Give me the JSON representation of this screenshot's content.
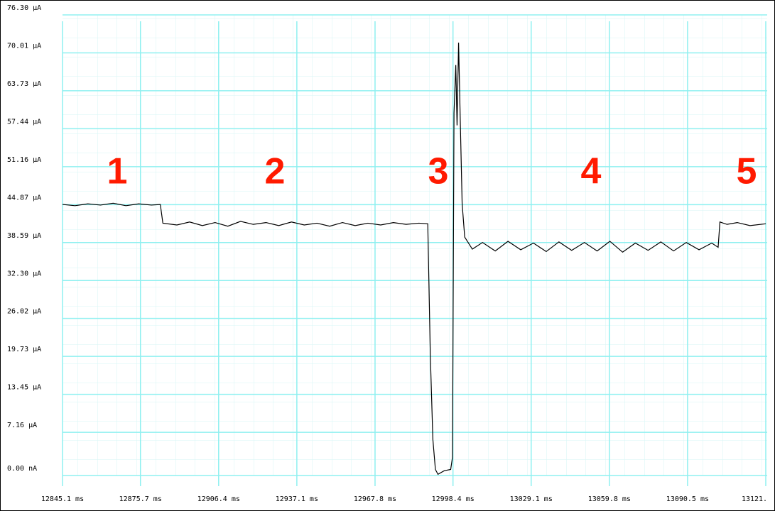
{
  "chart_data": {
    "type": "line",
    "x": [
      12845.1,
      12850,
      12855,
      12860,
      12865,
      12870,
      12875,
      12880,
      12883.5,
      12884.5,
      12890,
      12895,
      12900,
      12905,
      12910,
      12915,
      12920,
      12925,
      12930,
      12935,
      12940,
      12945,
      12950,
      12955,
      12960,
      12965,
      12970,
      12975,
      12980,
      12985,
      12988.5,
      12989.5,
      12990.5,
      12991.5,
      12992.5,
      12995,
      12997.5,
      12998.2,
      12998.8,
      12999.5,
      13000,
      13000.6,
      13001.2,
      13002,
      13003,
      13006,
      13010,
      13015,
      13020,
      13025,
      13030,
      13035,
      13040,
      13045,
      13050,
      13055,
      13060,
      13065,
      13070,
      13075,
      13080,
      13085,
      13090,
      13095,
      13100,
      13102.5,
      13103.2,
      13106,
      13110,
      13115,
      13121.2
    ],
    "series": [
      {
        "color": "#000000",
        "values": [
          44.9,
          44.7,
          45.0,
          44.8,
          45.1,
          44.7,
          45.0,
          44.8,
          44.9,
          41.8,
          41.5,
          42.0,
          41.4,
          41.9,
          41.3,
          42.1,
          41.6,
          41.9,
          41.4,
          42.0,
          41.5,
          41.8,
          41.3,
          41.9,
          41.4,
          41.8,
          41.5,
          41.9,
          41.6,
          41.8,
          41.7,
          20,
          6,
          1,
          0.2,
          0.8,
          1.0,
          3,
          60,
          68,
          58,
          71.7,
          60,
          45,
          39.5,
          37.5,
          38.6,
          37.2,
          38.8,
          37.4,
          38.5,
          37.1,
          38.7,
          37.3,
          38.6,
          37.2,
          38.8,
          37.0,
          38.5,
          37.3,
          38.7,
          37.2,
          38.6,
          37.4,
          38.5,
          37.8,
          42.0,
          41.6,
          41.9,
          41.4,
          41.7
        ]
      }
    ],
    "xlim": [
      12845.1,
      13121.2
    ],
    "ylim": [
      0,
      76.3
    ],
    "xticks": [
      {
        "value": 12845.1,
        "label": "12845.1 ms"
      },
      {
        "value": 12875.7,
        "label": "12875.7 ms"
      },
      {
        "value": 12906.4,
        "label": "12906.4 ms"
      },
      {
        "value": 12937.1,
        "label": "12937.1 ms"
      },
      {
        "value": 12967.8,
        "label": "12967.8 ms"
      },
      {
        "value": 12998.4,
        "label": "12998.4 ms"
      },
      {
        "value": 13029.1,
        "label": "13029.1 ms"
      },
      {
        "value": 13059.8,
        "label": "13059.8 ms"
      },
      {
        "value": 13090.5,
        "label": "13090.5 ms"
      },
      {
        "value": 13121.2,
        "label": "13121."
      }
    ],
    "yticks": [
      {
        "value": 0,
        "label": "0.00 nA"
      },
      {
        "value": 7.16,
        "label": "7.16 µA"
      },
      {
        "value": 13.45,
        "label": "13.45 µA"
      },
      {
        "value": 19.73,
        "label": "19.73 µA"
      },
      {
        "value": 26.02,
        "label": "26.02 µA"
      },
      {
        "value": 32.3,
        "label": "32.30 µA"
      },
      {
        "value": 38.59,
        "label": "38.59 µA"
      },
      {
        "value": 44.87,
        "label": "44.87 µA"
      },
      {
        "value": 51.16,
        "label": "51.16 µA"
      },
      {
        "value": 57.44,
        "label": "57.44 µA"
      },
      {
        "value": 63.73,
        "label": "63.73 µA"
      },
      {
        "value": 70.01,
        "label": "70.01 µA"
      },
      {
        "value": 76.3,
        "label": "76.30 µA"
      }
    ],
    "grid": true,
    "annotations": [
      "1",
      "2",
      "3",
      "4",
      "5"
    ]
  }
}
